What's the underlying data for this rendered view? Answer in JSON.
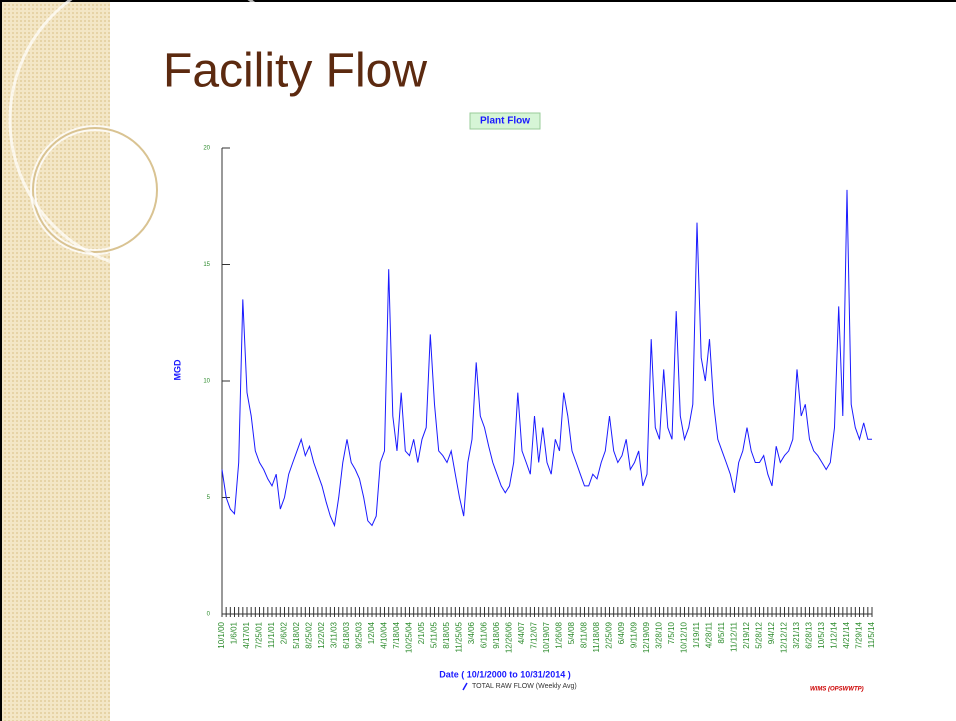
{
  "slide_title": "Facility Flow",
  "chart_data": {
    "type": "line",
    "title": "Plant Flow",
    "y_label": "MGD",
    "x_label": "Date  ( 10/1/2000  to  10/31/2014 )",
    "source": "WIMS (OPSWWTP)",
    "categories": [
      "10/1/00",
      null,
      null,
      "1/6/01",
      null,
      null,
      "4/17/01",
      null,
      null,
      "7/25/01",
      null,
      null,
      "11/1/01",
      null,
      null,
      "2/6/02",
      null,
      null,
      "5/18/02",
      null,
      null,
      "8/25/02",
      null,
      null,
      "12/2/02",
      null,
      null,
      "3/11/03",
      null,
      null,
      "6/18/03",
      null,
      null,
      "9/25/03",
      null,
      null,
      "1/2/04",
      null,
      null,
      "4/10/04",
      null,
      null,
      "7/18/04",
      null,
      null,
      "10/25/04",
      null,
      null,
      "2/1/05",
      null,
      null,
      "5/11/05",
      null,
      null,
      "8/18/05",
      null,
      null,
      "11/25/05",
      null,
      null,
      "3/4/06",
      null,
      null,
      "6/11/06",
      null,
      null,
      "9/18/06",
      null,
      null,
      "12/26/06",
      null,
      null,
      "4/4/07",
      null,
      null,
      "7/12/07",
      null,
      null,
      "10/19/07",
      null,
      null,
      "1/26/08",
      null,
      null,
      "5/4/08",
      null,
      null,
      "8/11/08",
      null,
      null,
      "11/18/08",
      null,
      null,
      "2/25/09",
      null,
      null,
      "6/4/09",
      null,
      null,
      "9/11/09",
      null,
      null,
      "12/19/09",
      null,
      null,
      "3/28/10",
      null,
      null,
      "7/5/10",
      null,
      null,
      "10/12/10",
      null,
      null,
      "1/19/11",
      null,
      null,
      "4/28/11",
      null,
      null,
      "8/5/11",
      null,
      null,
      "11/12/11",
      null,
      null,
      "2/19/12",
      null,
      null,
      "5/28/12",
      null,
      null,
      "9/4/12",
      null,
      null,
      "12/12/12",
      null,
      null,
      "3/21/13",
      null,
      null,
      "6/28/13",
      null,
      null,
      "10/5/13",
      null,
      null,
      "1/12/14",
      null,
      null,
      "4/21/14",
      null,
      null,
      "7/29/14",
      null,
      null,
      "11/5/14"
    ],
    "series": [
      {
        "name": "TOTAL RAW FLOW (Weekly Avg)",
        "color": "#1a1aff",
        "values": [
          6.2,
          5.0,
          4.5,
          4.3,
          6.5,
          13.5,
          9.5,
          8.5,
          7.0,
          6.5,
          6.2,
          5.8,
          5.5,
          6.0,
          4.5,
          5.0,
          6.0,
          6.5,
          7.0,
          7.5,
          6.8,
          7.2,
          6.5,
          6.0,
          5.5,
          4.8,
          4.2,
          3.8,
          5.0,
          6.5,
          7.5,
          6.5,
          6.2,
          5.8,
          5.0,
          4.0,
          3.8,
          4.2,
          6.5,
          7.0,
          14.8,
          8.5,
          7.0,
          9.5,
          7.0,
          6.8,
          7.5,
          6.5,
          7.5,
          8.0,
          12.0,
          9.0,
          7.0,
          6.8,
          6.5,
          7.0,
          6.0,
          5.0,
          4.2,
          6.5,
          7.5,
          10.8,
          8.5,
          8.0,
          7.2,
          6.5,
          6.0,
          5.5,
          5.2,
          5.5,
          6.5,
          9.5,
          7.0,
          6.5,
          6.0,
          8.5,
          6.5,
          8.0,
          6.5,
          6.0,
          7.5,
          7.0,
          9.5,
          8.5,
          7.0,
          6.5,
          6.0,
          5.5,
          5.5,
          6.0,
          5.8,
          6.5,
          7.0,
          8.5,
          7.0,
          6.5,
          6.8,
          7.5,
          6.2,
          6.5,
          7.0,
          5.5,
          6.0,
          11.8,
          8.0,
          7.5,
          10.5,
          8.0,
          7.5,
          13.0,
          8.5,
          7.5,
          8.0,
          9.0,
          16.8,
          11.0,
          10.0,
          11.8,
          9.0,
          7.5,
          7.0,
          6.5,
          6.0,
          5.2,
          6.5,
          7.0,
          8.0,
          7.0,
          6.5,
          6.5,
          6.8,
          6.0,
          5.5,
          7.2,
          6.5,
          6.8,
          7.0,
          7.5,
          10.5,
          8.5,
          9.0,
          7.5,
          7.0,
          6.8,
          6.5,
          6.2,
          6.5,
          8.0,
          13.2,
          8.5,
          18.2,
          9.0,
          8.0,
          7.5,
          8.2,
          7.5,
          7.5
        ]
      }
    ],
    "ylim": [
      0,
      20
    ],
    "yticks": [
      0,
      5,
      10,
      15,
      20
    ]
  }
}
